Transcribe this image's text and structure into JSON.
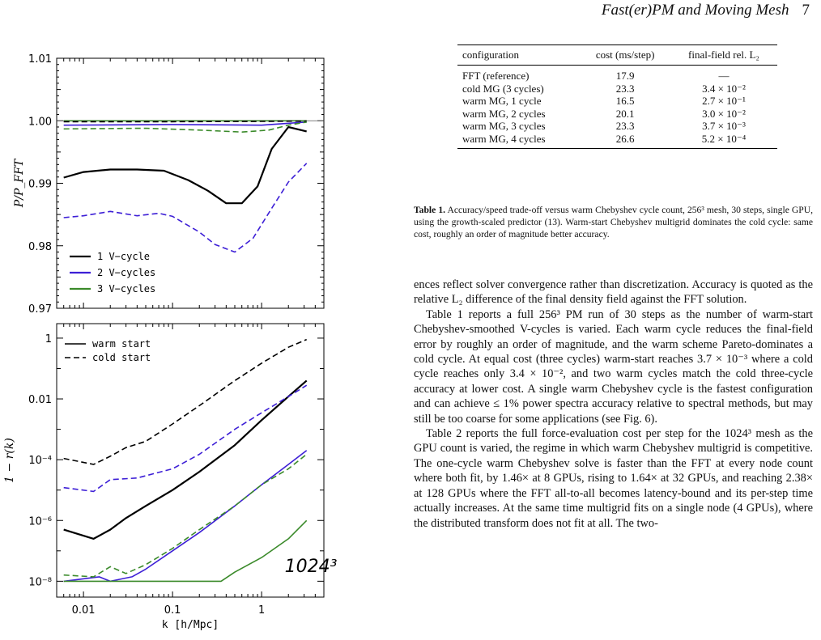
{
  "header": {
    "title": "Fast(er)PM and Moving Mesh",
    "page_number": "7"
  },
  "table": {
    "headers": [
      "configuration",
      "cost (ms/step)",
      "final-field rel. L₂"
    ],
    "rows": [
      [
        "FFT (reference)",
        "17.9",
        "—"
      ],
      [
        "cold MG (3 cycles)",
        "23.3",
        "3.4 × 10⁻²"
      ],
      [
        "warm MG, 1 cycle",
        "16.5",
        "2.7 × 10⁻¹"
      ],
      [
        "warm MG, 2 cycles",
        "20.1",
        "3.0 × 10⁻²"
      ],
      [
        "warm MG, 3 cycles",
        "23.3",
        "3.7 × 10⁻³"
      ],
      [
        "warm MG, 4 cycles",
        "26.6",
        "5.2 × 10⁻⁴"
      ]
    ]
  },
  "caption": {
    "label": "Table 1.",
    "text": "Accuracy/speed trade-off versus warm Chebyshev cycle count, 256³ mesh, 30 steps, single GPU, using the growth-scaled predictor (13). Warm-start Chebyshev multigrid dominates the cold cycle: same cost, roughly an order of magnitude better accuracy."
  },
  "body": {
    "p1": "ences reflect solver convergence rather than discretization. Accuracy is quoted as the relative L₂ difference of the final density field against the FFT solution.",
    "p2": "Table 1 reports a full 256³ PM run of 30 steps as the number of warm-start Chebyshev-smoothed V-cycles is varied. Each warm cycle reduces the final-field error by roughly an order of magnitude, and the warm scheme Pareto-dominates a cold cycle. At equal cost (three cycles) warm-start reaches 3.7 × 10⁻³ where a cold cycle reaches only 3.4 × 10⁻², and two warm cycles match the cold three-cycle accuracy at lower cost. A single warm Chebyshev cycle is the fastest configuration and can achieve ≤ 1% power spectra accuracy relative to spectral methods, but may still be too coarse for some applications (see Fig. 6).",
    "p3": "Table 2 reports the full force-evaluation cost per step for the 1024³ mesh as the GPU count is varied, the regime in which warm Chebyshev multigrid is competitive. The one-cycle warm Chebyshev solve is faster than the FFT at every node count where both fit, by 1.46× at 8 GPUs, rising to 1.64× at 32 GPUs, and reaching 2.38× at 128 GPUs where the FFT all-to-all becomes latency-bound and its per-step time actually increases. At the same time multigrid fits on a single node (4 GPUs), where the distributed transform does not fit at all. The two-"
  },
  "figure": {
    "colors": {
      "one": "#000000",
      "two": "#3d1fd6",
      "three": "#3a8a2a"
    },
    "top": {
      "ylabel": "P/P_FFT",
      "yticks": [
        "0.97",
        "0.98",
        "0.99",
        "1.00",
        "1.01"
      ],
      "ylim": [
        0.97,
        1.01
      ],
      "legend": [
        "1 V−cycle",
        "2 V−cycles",
        "3 V−cycles"
      ]
    },
    "bottom": {
      "ylabel": "1 − r(k)",
      "xlabel": "k [h/Mpc]",
      "yticks": [
        "10⁻⁸",
        "10⁻⁶",
        "10⁻⁴",
        "0.01",
        "1"
      ],
      "xticks": [
        "0.01",
        "0.1",
        "1"
      ],
      "legend": [
        "warm start",
        "cold start"
      ],
      "annotation": "1024³"
    }
  },
  "chart_data": [
    {
      "type": "line",
      "xscale": "log",
      "xlim": [
        0.005,
        5
      ],
      "ylim": [
        0.97,
        1.01
      ],
      "ylabel": "P/P_FFT",
      "legend_position": "lower-left",
      "series": [
        {
          "name": "1 V−cycle",
          "style": "solid",
          "color": "#000000",
          "x": [
            0.006,
            0.01,
            0.02,
            0.04,
            0.08,
            0.15,
            0.25,
            0.4,
            0.6,
            0.9,
            1.3,
            2.0,
            3.2
          ],
          "y": [
            0.9909,
            0.9918,
            0.9922,
            0.9922,
            0.992,
            0.9905,
            0.9888,
            0.9868,
            0.9868,
            0.9895,
            0.9955,
            0.999,
            0.9983
          ]
        },
        {
          "name": "2 V−cycles",
          "style": "solid",
          "color": "#3d1fd6",
          "x": [
            0.006,
            0.1,
            1,
            3.2
          ],
          "y": [
            0.9993,
            0.9994,
            0.9993,
            0.9998
          ]
        },
        {
          "name": "3 V−cycles",
          "style": "solid",
          "color": "#3a8a2a",
          "x": [
            0.006,
            3.2
          ],
          "y": [
            1.0,
            1.0
          ]
        },
        {
          "name": "",
          "style": "dashed",
          "color": "#000000",
          "x": [
            0.006,
            0.1,
            1,
            3.2
          ],
          "y": [
            0.99985,
            0.99985,
            0.9999,
            0.99995
          ]
        },
        {
          "name": "",
          "style": "dashed",
          "color": "#3d1fd6",
          "x": [
            0.006,
            0.01,
            0.02,
            0.04,
            0.07,
            0.1,
            0.2,
            0.3,
            0.5,
            0.8,
            1.3,
            2.0,
            3.2
          ],
          "y": [
            0.9845,
            0.9848,
            0.9855,
            0.9848,
            0.9852,
            0.9847,
            0.9822,
            0.9802,
            0.979,
            0.9812,
            0.986,
            0.9902,
            0.9932
          ]
        },
        {
          "name": "",
          "style": "dashed",
          "color": "#3a8a2a",
          "x": [
            0.006,
            0.05,
            0.2,
            0.6,
            1.2,
            2.0,
            3.2
          ],
          "y": [
            0.9987,
            0.9988,
            0.9985,
            0.9982,
            0.9985,
            0.9993,
            0.9998
          ]
        }
      ]
    },
    {
      "type": "line",
      "xscale": "log",
      "yscale": "log",
      "xlim": [
        0.005,
        5
      ],
      "ylim": [
        3e-09,
        3
      ],
      "xlabel": "k [h/Mpc]",
      "ylabel": "1 − r(k)",
      "legend_position": "top-left",
      "annotation": "1024³",
      "series": [
        {
          "name": "warm start",
          "style": "solid",
          "color": "#000000",
          "x": [
            0.006,
            0.013,
            0.02,
            0.03,
            0.05,
            0.1,
            0.2,
            0.5,
            1,
            2,
            3.2
          ],
          "y": [
            5e-07,
            2.5e-07,
            5e-07,
            1.2e-06,
            3e-06,
            1e-05,
            4e-05,
            0.0003,
            0.002,
            0.012,
            0.04
          ]
        },
        {
          "name": "cold start",
          "style": "dashed",
          "color": "#000000",
          "x": [
            0.006,
            0.013,
            0.02,
            0.03,
            0.05,
            0.1,
            0.2,
            0.5,
            1,
            2,
            3.2
          ],
          "y": [
            0.00011,
            7e-05,
            0.00013,
            0.00025,
            0.0004,
            0.0015,
            0.006,
            0.04,
            0.15,
            0.5,
            0.9
          ]
        },
        {
          "name": "",
          "style": "solid",
          "color": "#3d1fd6",
          "x": [
            0.006,
            0.015,
            0.02,
            0.035,
            0.05,
            0.1,
            0.2,
            0.5,
            1,
            2,
            3.2
          ],
          "y": [
            1e-08,
            1.4e-08,
            1e-08,
            1.4e-08,
            2.5e-08,
            1e-07,
            4e-07,
            3e-06,
            1.5e-05,
            7e-05,
            0.0002
          ]
        },
        {
          "name": "",
          "style": "dashed",
          "color": "#3d1fd6",
          "x": [
            0.006,
            0.013,
            0.02,
            0.04,
            0.1,
            0.2,
            0.5,
            1,
            2,
            3.2
          ],
          "y": [
            1.2e-05,
            9e-06,
            2.2e-05,
            2.5e-05,
            5e-05,
            0.00015,
            0.001,
            0.0035,
            0.012,
            0.028
          ]
        },
        {
          "name": "",
          "style": "solid",
          "color": "#3a8a2a",
          "x": [
            0.006,
            0.35,
            0.5,
            1,
            2,
            3.2
          ],
          "y": [
            1e-08,
            1e-08,
            2e-08,
            6e-08,
            2.5e-07,
            1e-06
          ]
        },
        {
          "name": "",
          "style": "dashed",
          "color": "#3a8a2a",
          "x": [
            0.006,
            0.013,
            0.02,
            0.03,
            0.05,
            0.1,
            0.2,
            0.5,
            1,
            2,
            3.2
          ],
          "y": [
            1.6e-08,
            1.4e-08,
            3e-08,
            1.8e-08,
            3.5e-08,
            1.2e-07,
            5e-07,
            3e-06,
            1.5e-05,
            5e-05,
            0.00015
          ]
        }
      ]
    }
  ]
}
